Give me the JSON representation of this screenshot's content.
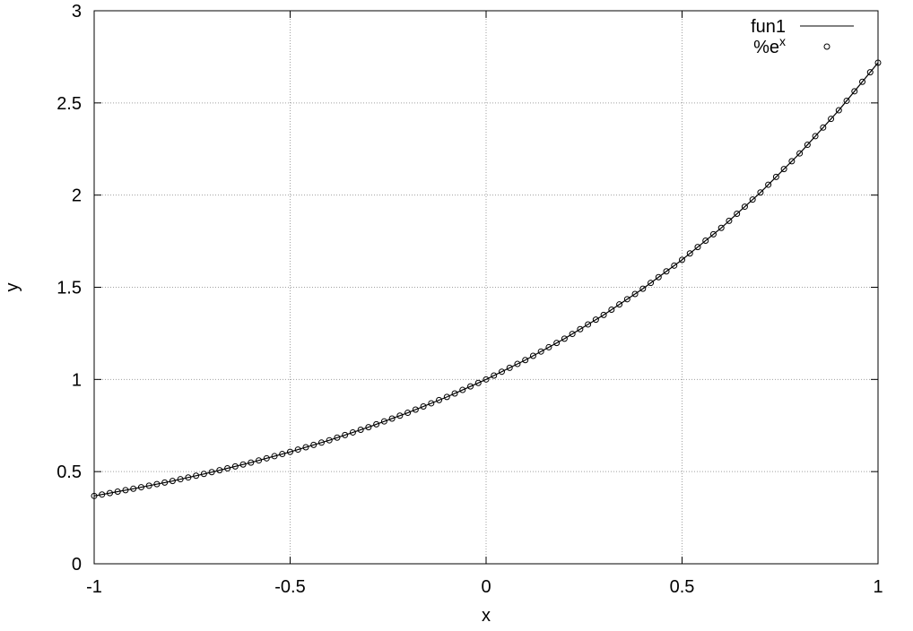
{
  "chart_data": {
    "type": "line",
    "title": "",
    "xlabel": "x",
    "ylabel": "y",
    "xlim": [
      -1,
      1
    ],
    "ylim": [
      0,
      3
    ],
    "xticks": [
      -1,
      -0.5,
      0,
      0.5,
      1
    ],
    "xtick_labels": [
      "-1",
      "-0.5",
      "0",
      "0.5",
      "1"
    ],
    "yticks": [
      0,
      0.5,
      1,
      1.5,
      2,
      2.5,
      3
    ],
    "ytick_labels": [
      "0",
      "0.5",
      "1",
      "1.5",
      "2",
      "2.5",
      "3"
    ],
    "grid": true,
    "legend_position": "top-right",
    "series": [
      {
        "name": "fun1",
        "style": "line",
        "color": "#000000",
        "x": [
          -1,
          -0.9,
          -0.8,
          -0.7,
          -0.6,
          -0.5,
          -0.4,
          -0.3,
          -0.2,
          -0.1,
          0,
          0.1,
          0.2,
          0.3,
          0.4,
          0.5,
          0.6,
          0.7,
          0.8,
          0.9,
          1
        ],
        "y": [
          0.368,
          0.407,
          0.449,
          0.497,
          0.549,
          0.607,
          0.67,
          0.741,
          0.819,
          0.905,
          1.0,
          1.105,
          1.221,
          1.35,
          1.492,
          1.649,
          1.822,
          2.014,
          2.226,
          2.46,
          2.718
        ]
      },
      {
        "name": "%e",
        "name_superscript": "x",
        "style": "points",
        "marker": "open-circle",
        "color": "#000000",
        "x": [
          -1,
          -0.9,
          -0.8,
          -0.7,
          -0.6,
          -0.5,
          -0.4,
          -0.3,
          -0.2,
          -0.1,
          0,
          0.1,
          0.2,
          0.3,
          0.4,
          0.5,
          0.6,
          0.7,
          0.8,
          0.9,
          1
        ],
        "y": [
          0.368,
          0.407,
          0.449,
          0.497,
          0.549,
          0.607,
          0.67,
          0.741,
          0.819,
          0.905,
          1.0,
          1.105,
          1.221,
          1.35,
          1.492,
          1.649,
          1.822,
          2.014,
          2.226,
          2.46,
          2.718
        ]
      }
    ]
  }
}
